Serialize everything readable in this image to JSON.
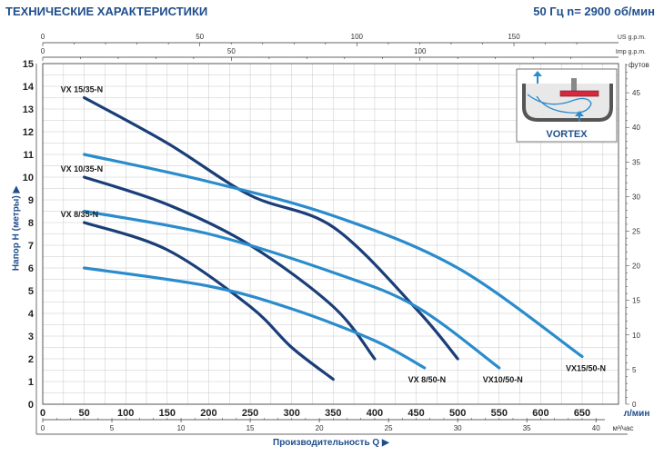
{
  "header": {
    "title": "ТЕХНИЧЕСКИЕ ХАРАКТЕРИСТИКИ",
    "spec": "50 Гц  n= 2900 об/мин"
  },
  "inset": {
    "label": "VORTEX"
  },
  "colors": {
    "dark": "#1a3e78",
    "light": "#2a8ccc",
    "grid": "#c8c8c8",
    "text": "#1f4e8c"
  },
  "chart_data": {
    "type": "line",
    "xlabel": "Производительность  Q",
    "ylabel": "Напор  H (метры)",
    "x_unit": "л/мин",
    "x2_unit": "м³/час",
    "y2_unit": "футов",
    "us_unit": "US g.p.m.",
    "imp_unit": "Imp g.p.m.",
    "xlim": [
      0,
      680
    ],
    "ylim": [
      0,
      15
    ],
    "x_ticks": [
      "0",
      "50",
      "100",
      "150",
      "200",
      "250",
      "300",
      "350",
      "400",
      "450",
      "500",
      "550",
      "600",
      "650"
    ],
    "y_ticks": [
      "0",
      "1",
      "2",
      "3",
      "4",
      "5",
      "6",
      "7",
      "8",
      "9",
      "10",
      "11",
      "12",
      "13",
      "14",
      "15"
    ],
    "m3_ticks": [
      "0",
      "5",
      "10",
      "15",
      "20",
      "25",
      "30",
      "35",
      "40"
    ],
    "ft_ticks": [
      "0",
      "5",
      "10",
      "15",
      "20",
      "25",
      "30",
      "35",
      "40",
      "45"
    ],
    "us_ticks": [
      "0",
      "50",
      "100",
      "150"
    ],
    "imp_ticks": [
      "0",
      "50",
      "100"
    ],
    "series": [
      {
        "name": "VX 15/35-N",
        "style": "dark",
        "label_pos": "left",
        "x": [
          50,
          150,
          250,
          350,
          450,
          500
        ],
        "y": [
          13.5,
          11.5,
          9.2,
          7.8,
          4.2,
          2.0
        ]
      },
      {
        "name": "VX 10/35-N",
        "style": "dark",
        "label_pos": "left",
        "x": [
          50,
          150,
          250,
          350,
          400
        ],
        "y": [
          10.0,
          8.8,
          7.0,
          4.3,
          2.0
        ]
      },
      {
        "name": "VX 8/35-N",
        "style": "dark",
        "label_pos": "left",
        "x": [
          50,
          150,
          250,
          300,
          350
        ],
        "y": [
          8.0,
          6.8,
          4.3,
          2.5,
          1.1
        ]
      },
      {
        "name": "VX15/50-N",
        "style": "light",
        "label_pos": "right",
        "x": [
          50,
          200,
          350,
          500,
          650
        ],
        "y": [
          11.0,
          9.8,
          8.3,
          6.0,
          2.1
        ]
      },
      {
        "name": "VX10/50-N",
        "style": "light",
        "label_pos": "right",
        "x": [
          50,
          200,
          350,
          450,
          550
        ],
        "y": [
          8.5,
          7.5,
          5.8,
          4.3,
          1.6
        ]
      },
      {
        "name": "VX 8/50-N",
        "style": "light",
        "label_pos": "right",
        "x": [
          50,
          200,
          300,
          400,
          460
        ],
        "y": [
          6.0,
          5.2,
          4.2,
          2.8,
          1.6
        ]
      }
    ]
  }
}
